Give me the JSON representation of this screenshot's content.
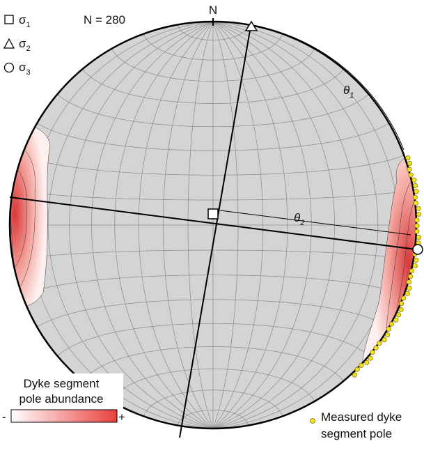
{
  "north_label": "N",
  "sample_count": "N = 280",
  "stress_legend": [
    {
      "symbol": "σ",
      "subscript": "1"
    },
    {
      "symbol": "σ",
      "subscript": "2"
    },
    {
      "symbol": "σ",
      "subscript": "3"
    }
  ],
  "angles": [
    {
      "symbol": "θ",
      "subscript": "1"
    },
    {
      "symbol": "θ",
      "subscript": "2"
    }
  ],
  "abundance_legend": {
    "title_line1": "Dyke segment",
    "title_line2": "pole abundance",
    "low": "-",
    "high": "+"
  },
  "pole_legend": {
    "line1": "Measured dyke",
    "line2": "segment pole"
  }
}
